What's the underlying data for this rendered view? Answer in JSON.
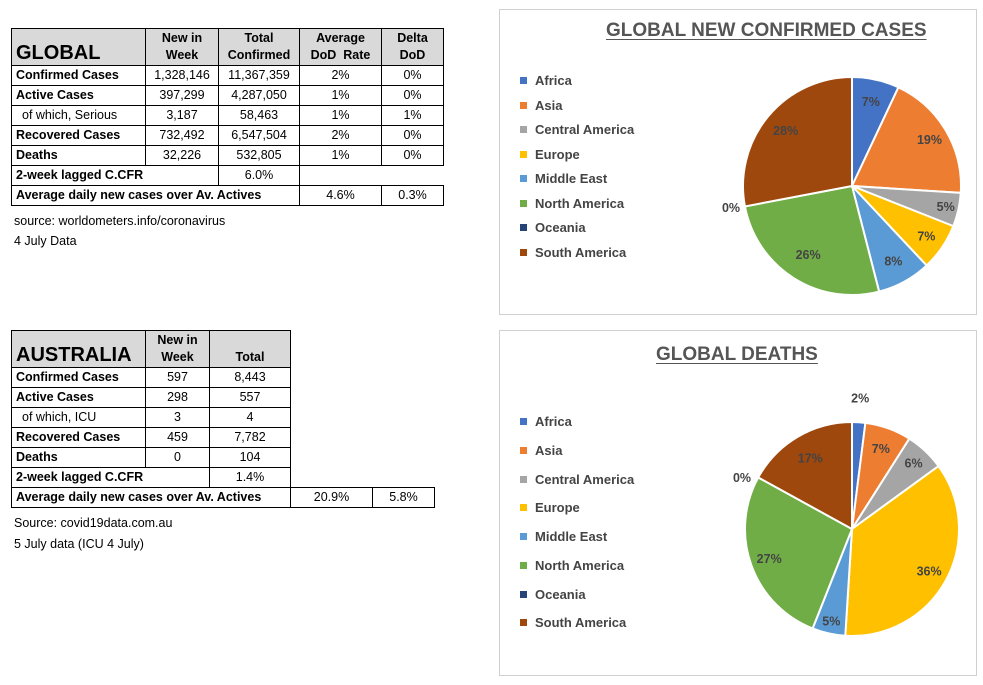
{
  "global_table": {
    "title": "GLOBAL",
    "col_new": [
      "New in",
      "Week"
    ],
    "col_total": [
      "Total",
      "Confirmed"
    ],
    "col_avg": [
      "Average",
      "DoD  Rate"
    ],
    "col_delta": [
      "Delta",
      "DoD"
    ],
    "rows": [
      {
        "label": "Confirmed Cases",
        "new": "1,328,146",
        "total": "11,367,359",
        "avg": "2%",
        "delta": "0%"
      },
      {
        "label": "Active Cases",
        "new": "397,299",
        "total": "4,287,050",
        "avg": "1%",
        "delta": "0%"
      },
      {
        "label": "of which, Serious",
        "new": "3,187",
        "total": "58,463",
        "avg": "1%",
        "delta": "1%"
      },
      {
        "label": "Recovered Cases",
        "new": "732,492",
        "total": "6,547,504",
        "avg": "2%",
        "delta": "0%"
      },
      {
        "label": "Deaths",
        "new": "32,226",
        "total": "532,805",
        "avg": "1%",
        "delta": "0%"
      }
    ],
    "cfr_label": "2-week lagged C.CFR",
    "cfr_value": "6.0%",
    "avg_label": "Average daily new cases over Av. Actives",
    "avg_value1": "4.6%",
    "avg_value2": "0.3%",
    "source": "source: worldometers.info/coronavirus",
    "date": "4 July Data"
  },
  "australia_table": {
    "title": "AUSTRALIA",
    "col_new": [
      "New in",
      "Week"
    ],
    "col_total": "Total",
    "rows": [
      {
        "label": "Confirmed Cases",
        "new": "597",
        "total": "8,443"
      },
      {
        "label": "Active Cases",
        "new": "298",
        "total": "557"
      },
      {
        "label": "of which, ICU",
        "new": "3",
        "total": "4"
      },
      {
        "label": "Recovered Cases",
        "new": "459",
        "total": "7,782"
      },
      {
        "label": "Deaths",
        "new": "0",
        "total": "104"
      }
    ],
    "cfr_label": "2-week lagged C.CFR",
    "cfr_value": "1.4%",
    "avg_label": "Average daily new cases over Av. Actives",
    "avg_value1": "20.9%",
    "avg_value2": "5.8%",
    "source": "Source: covid19data.com.au",
    "date": "5 July data (ICU 4 July)"
  },
  "chart_data": [
    {
      "type": "pie",
      "title": "GLOBAL NEW CONFIRMED CASES",
      "categories": [
        "Africa",
        "Asia",
        "Central America",
        "Europe",
        "Middle East",
        "North America",
        "Oceania",
        "South America"
      ],
      "values": [
        7,
        19,
        5,
        7,
        8,
        26,
        0,
        28
      ],
      "labels": [
        "7%",
        "19%",
        "5%",
        "7%",
        "8%",
        "26%",
        "0%",
        "28%"
      ],
      "colors": [
        "#4472c4",
        "#ed7d31",
        "#a5a5a5",
        "#ffc000",
        "#5b9bd5",
        "#70ad47",
        "#264478",
        "#9e480e"
      ],
      "legend": "left"
    },
    {
      "type": "pie",
      "title": "GLOBAL DEATHS",
      "categories": [
        "Africa",
        "Asia",
        "Central America",
        "Europe",
        "Middle East",
        "North America",
        "Oceania",
        "South America"
      ],
      "values": [
        2,
        7,
        6,
        36,
        5,
        27,
        0,
        17
      ],
      "labels": [
        "2%",
        "7%",
        "6%",
        "36%",
        "5%",
        "27%",
        "0%",
        "17%"
      ],
      "colors": [
        "#4472c4",
        "#ed7d31",
        "#a5a5a5",
        "#ffc000",
        "#5b9bd5",
        "#70ad47",
        "#264478",
        "#9e480e"
      ],
      "legend": "left"
    }
  ]
}
